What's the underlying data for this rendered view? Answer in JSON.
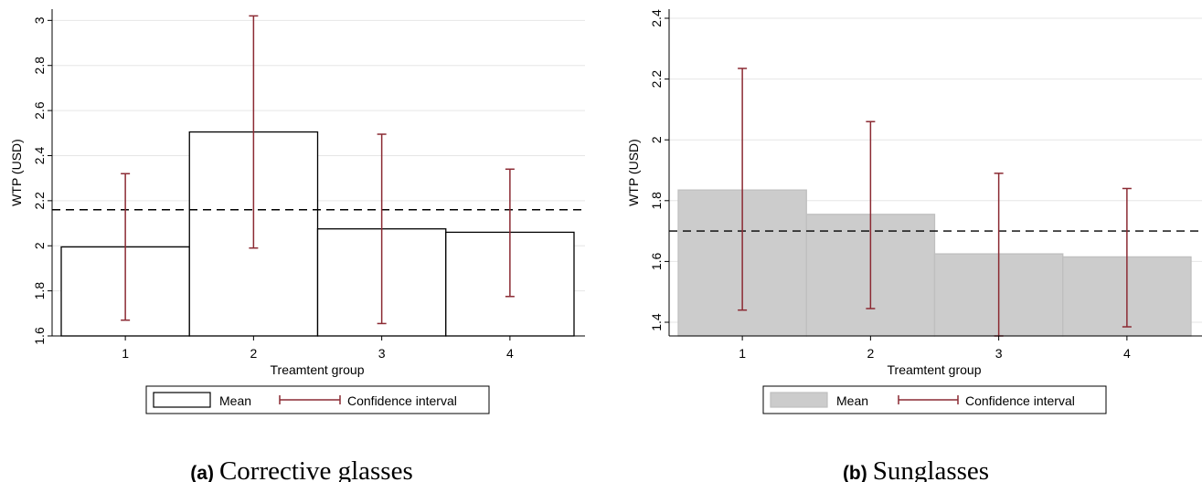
{
  "chart_data": [
    {
      "type": "bar",
      "panel_label": "(a)",
      "panel_title": "Corrective glasses",
      "xlabel": "Treamtent group",
      "ylabel": "WTP (USD)",
      "categories": [
        "1",
        "2",
        "3",
        "4"
      ],
      "values": [
        1.995,
        2.505,
        2.075,
        2.06
      ],
      "ci_low": [
        1.67,
        1.99,
        1.655,
        1.775
      ],
      "ci_high": [
        2.32,
        3.02,
        2.495,
        2.34
      ],
      "reference_line": 2.16,
      "ylim": [
        1.6,
        3.05
      ],
      "yticks": [
        1.6,
        1.8,
        2,
        2.2,
        2.4,
        2.6,
        2.8,
        3
      ],
      "ytick_labels": [
        "1.6",
        "1.8",
        "2",
        "2.2",
        "2.4",
        "2.6",
        "2.8",
        "3"
      ],
      "grid": true,
      "legend": {
        "position": "bottom",
        "mean": "Mean",
        "ci": "Confidence interval"
      },
      "colors": {
        "bar_fill": "#ffffff",
        "bar_stroke": "#000000",
        "ci": "#8b2a33",
        "grid": "#e6e6e6"
      }
    },
    {
      "type": "bar",
      "panel_label": "(b)",
      "panel_title": "Sunglasses",
      "xlabel": "Treamtent group",
      "ylabel": "WTP (USD)",
      "categories": [
        "1",
        "2",
        "3",
        "4"
      ],
      "values": [
        1.835,
        1.755,
        1.625,
        1.615
      ],
      "ci_low": [
        1.44,
        1.445,
        1.355,
        1.385
      ],
      "ci_high": [
        2.235,
        2.06,
        1.89,
        1.84
      ],
      "reference_line": 1.7,
      "ylim": [
        1.355,
        2.43
      ],
      "yticks": [
        1.4,
        1.6,
        1.8,
        2,
        2.2,
        2.4
      ],
      "ytick_labels": [
        "1.4",
        "1.6",
        "1.8",
        "2",
        "2.2",
        "2.4"
      ],
      "grid": true,
      "legend": {
        "position": "bottom",
        "mean": "Mean",
        "ci": "Confidence interval"
      },
      "colors": {
        "bar_fill": "#cccccc",
        "bar_stroke": "#bfbfbf",
        "ci": "#8b2a33",
        "grid": "#e6e6e6"
      }
    }
  ]
}
